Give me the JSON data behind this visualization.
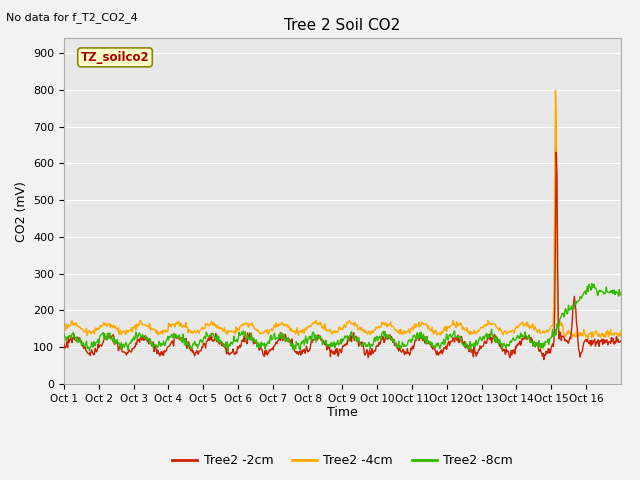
{
  "title": "Tree 2 Soil CO2",
  "no_data_text": "No data for f_T2_CO2_4",
  "ylabel": "CO2 (mV)",
  "xlabel": "Time",
  "ylim": [
    0,
    940
  ],
  "yticks": [
    0,
    100,
    200,
    300,
    400,
    500,
    600,
    700,
    800,
    900
  ],
  "x_labels": [
    "Oct 1",
    "Oct 2",
    "Oct 3",
    "Oct 4",
    "Oct 5",
    "Oct 6",
    "Oct 7",
    "Oct 8",
    "Oct 9",
    "Oct 10",
    "Oct 11",
    "Oct 12",
    "Oct 13",
    "Oct 14",
    "Oct 15",
    "Oct 16"
  ],
  "n_days": 16,
  "annotation_label": "TZ_soilco2",
  "colors": {
    "red": "#cc2200",
    "orange": "#ffaa00",
    "green": "#33bb00",
    "background": "#e8e8e8",
    "grid": "#ffffff",
    "fig_bg": "#f2f2f2"
  },
  "legend_labels": [
    "Tree2 -2cm",
    "Tree2 -4cm",
    "Tree2 -8cm"
  ]
}
